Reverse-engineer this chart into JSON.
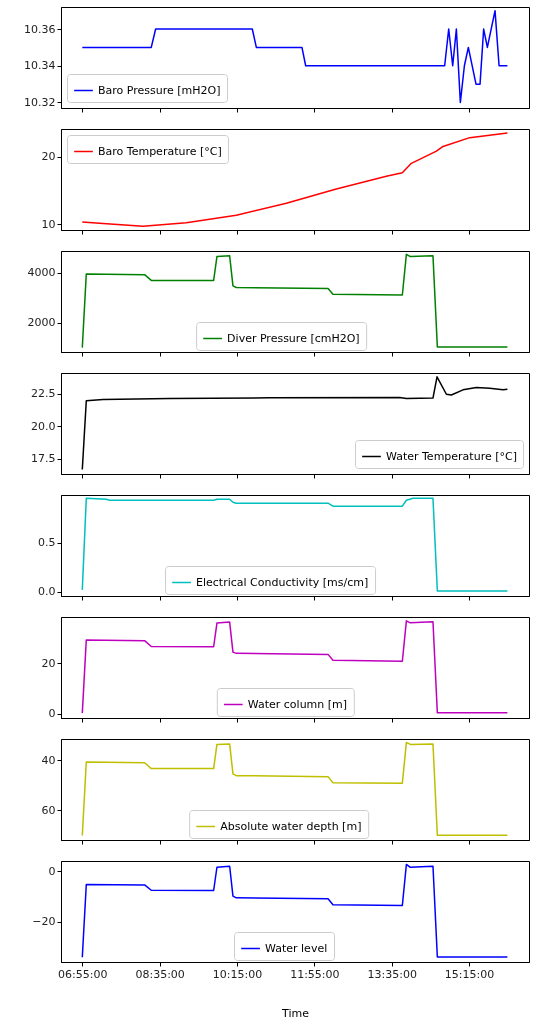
{
  "chart_data": [
    {
      "type": "line",
      "x": [
        6.917,
        8.403,
        8.497,
        10.58,
        10.667,
        11.65,
        11.73,
        14.725,
        14.812,
        14.898,
        14.977,
        15.063,
        15.15,
        15.235,
        15.4,
        15.487,
        15.565,
        15.645,
        15.81,
        15.897,
        16.077
      ],
      "series": [
        {
          "name": "Baro Pressure [mH2O]",
          "color": "#0000ff",
          "values": [
            10.35,
            10.35,
            10.36,
            10.36,
            10.35,
            10.35,
            10.34,
            10.34,
            10.36,
            10.34,
            10.36,
            10.32,
            10.34,
            10.35,
            10.33,
            10.33,
            10.36,
            10.35,
            10.37,
            10.34,
            10.34
          ]
        }
      ],
      "xlim": [
        6.458,
        16.542
      ],
      "xticks": [
        {
          "value": 6.9167,
          "label": null
        },
        {
          "value": 8.5833,
          "label": null
        },
        {
          "value": 10.25,
          "label": null
        },
        {
          "value": 11.9167,
          "label": null
        },
        {
          "value": 13.5833,
          "label": null
        },
        {
          "value": 15.25,
          "label": null
        }
      ],
      "ylim": [
        10.317,
        10.372
      ],
      "yticks": [
        10.32,
        10.34,
        10.36
      ],
      "legend": "bottom left",
      "tick_labels": "y"
    },
    {
      "type": "line",
      "x": [
        6.917,
        7.362,
        8.224,
        9.158,
        10.235,
        11.313,
        12.39,
        13.468,
        13.813,
        14.007,
        14.547,
        14.69,
        15.265,
        16.077
      ],
      "series": [
        {
          "name": "Baro Temperature [°C]",
          "color": "#ff0000",
          "values": [
            10.3,
            10.1,
            9.7,
            10.2,
            11.3,
            13.1,
            15.2,
            17.1,
            17.6,
            19.0,
            20.8,
            21.5,
            22.8,
            23.5
          ]
        }
      ],
      "xlim": [
        6.458,
        16.542
      ],
      "xticks": [
        {
          "value": 6.9167,
          "label": null
        },
        {
          "value": 8.5833,
          "label": null
        },
        {
          "value": 10.25,
          "label": null
        },
        {
          "value": 11.9167,
          "label": null
        },
        {
          "value": 13.5833,
          "label": null
        },
        {
          "value": 15.25,
          "label": null
        }
      ],
      "ylim": [
        9.13,
        24.08
      ],
      "yticks": [
        10,
        20
      ],
      "legend": "top left",
      "tick_labels": "y"
    },
    {
      "type": "line",
      "x": [
        6.917,
        7.003,
        8.26,
        8.403,
        9.747,
        9.818,
        10.092,
        10.163,
        10.235,
        12.212,
        12.318,
        13.813,
        13.9,
        13.985,
        14.473,
        14.567,
        16.077
      ],
      "series": [
        {
          "name": "Diver Pressure [cmH2O]",
          "color": "#008000",
          "values": [
            1010,
            3950,
            3920,
            3690,
            3690,
            4640,
            4670,
            3470,
            3410,
            3370,
            3140,
            3110,
            4730,
            4640,
            4670,
            1040,
            1040
          ]
        }
      ],
      "xlim": [
        6.458,
        16.542
      ],
      "xticks": [
        {
          "value": 6.9167,
          "label": null
        },
        {
          "value": 8.5833,
          "label": null
        },
        {
          "value": 10.25,
          "label": null
        },
        {
          "value": 11.9167,
          "label": null
        },
        {
          "value": 13.5833,
          "label": null
        },
        {
          "value": 15.25,
          "label": null
        }
      ],
      "ylim": [
        836,
        4863
      ],
      "yticks": [
        2000,
        4000
      ],
      "legend": "bottom",
      "tick_labels": "y"
    },
    {
      "type": "line",
      "x": [
        6.917,
        7.003,
        7.362,
        8.798,
        10.953,
        13.755,
        13.9,
        14.473,
        14.56,
        14.762,
        14.87,
        15.12,
        15.408,
        15.695,
        15.983,
        16.077
      ],
      "series": [
        {
          "name": "Water Temperature [°C]",
          "color": "#000000",
          "values": [
            16.68,
            21.95,
            22.05,
            22.13,
            22.18,
            22.21,
            22.13,
            22.16,
            23.79,
            22.45,
            22.39,
            22.79,
            22.97,
            22.92,
            22.79,
            22.84
          ]
        }
      ],
      "xlim": [
        6.458,
        16.542
      ],
      "xticks": [
        {
          "value": 6.9167,
          "label": null
        },
        {
          "value": 8.5833,
          "label": null
        },
        {
          "value": 10.25,
          "label": null
        },
        {
          "value": 11.9167,
          "label": null
        },
        {
          "value": 13.5833,
          "label": null
        },
        {
          "value": 15.25,
          "label": null
        }
      ],
      "ylim": [
        16.34,
        24.08
      ],
      "yticks": [
        17.5,
        {
          "value": 20,
          "label": "20.0"
        },
        22.5
      ],
      "legend": "bottom right",
      "tick_labels": "y"
    },
    {
      "type": "line",
      "x": [
        6.917,
        7.003,
        7.433,
        7.505,
        9.747,
        9.818,
        10.092,
        10.163,
        10.235,
        12.212,
        12.318,
        13.813,
        13.9,
        14.043,
        14.473,
        14.567,
        16.077
      ],
      "series": [
        {
          "name": "Electrical Conductivity [ms/cm]",
          "color": "#00bfbf",
          "values": [
            0.02,
            0.95,
            0.94,
            0.93,
            0.93,
            0.94,
            0.94,
            0.91,
            0.9,
            0.9,
            0.87,
            0.87,
            0.93,
            0.95,
            0.95,
            0.01,
            0.01
          ]
        }
      ],
      "xlim": [
        6.458,
        16.542
      ],
      "xticks": [
        {
          "value": 6.9167,
          "label": null
        },
        {
          "value": 8.5833,
          "label": null
        },
        {
          "value": 10.25,
          "label": null
        },
        {
          "value": 11.9167,
          "label": null
        },
        {
          "value": 13.5833,
          "label": null
        },
        {
          "value": 15.25,
          "label": null
        }
      ],
      "ylim": [
        -0.042,
        0.983
      ],
      "yticks": [
        {
          "value": 0,
          "label": "0.0"
        },
        0.5
      ],
      "legend": "bottom",
      "tick_labels": "y"
    },
    {
      "type": "line",
      "x": [
        6.917,
        7.003,
        8.26,
        8.403,
        9.747,
        9.818,
        10.092,
        10.163,
        10.235,
        12.212,
        12.318,
        13.813,
        13.9,
        13.985,
        14.473,
        14.567,
        16.077
      ],
      "series": [
        {
          "name": "Water column [m]",
          "color": "#bf00bf",
          "values": [
            0.3,
            29.1,
            28.8,
            26.5,
            26.4,
            35.7,
            36.1,
            24.3,
            23.8,
            23.4,
            21.1,
            20.7,
            36.6,
            35.8,
            36.2,
            0.4,
            0.4
          ]
        }
      ],
      "xlim": [
        6.458,
        16.542
      ],
      "xticks": [
        {
          "value": 6.9167,
          "label": null
        },
        {
          "value": 8.5833,
          "label": null
        },
        {
          "value": 10.25,
          "label": null
        },
        {
          "value": 11.9167,
          "label": null
        },
        {
          "value": 13.5833,
          "label": null
        },
        {
          "value": 15.25,
          "label": null
        }
      ],
      "ylim": [
        -1.62,
        38.1
      ],
      "yticks": [
        0,
        20
      ],
      "legend": "bottom",
      "tick_labels": "y"
    },
    {
      "type": "line",
      "x": [
        6.917,
        7.003,
        8.26,
        8.403,
        9.747,
        9.818,
        10.092,
        10.163,
        10.235,
        12.212,
        12.318,
        13.813,
        13.9,
        13.985,
        14.473,
        14.567,
        16.077
      ],
      "series": [
        {
          "name": "Absolute water depth [m]",
          "color": "#bfbf00",
          "values": [
            70.0,
            40.8,
            41.1,
            43.4,
            43.4,
            33.8,
            33.6,
            45.5,
            46.2,
            46.6,
            49.0,
            49.2,
            33.0,
            33.8,
            33.6,
            69.9,
            69.9
          ]
        }
      ],
      "xlim": [
        6.458,
        16.542
      ],
      "xticks": [
        {
          "value": 6.9167,
          "label": null
        },
        {
          "value": 8.5833,
          "label": null
        },
        {
          "value": 10.25,
          "label": null
        },
        {
          "value": 11.9167,
          "label": null
        },
        {
          "value": 13.5833,
          "label": null
        },
        {
          "value": 15.25,
          "label": null
        }
      ],
      "ylim": [
        71.78,
        31.64
      ],
      "yticks": [
        40,
        60
      ],
      "legend": "bottom",
      "tick_labels": "y"
    },
    {
      "type": "line",
      "x": [
        6.917,
        7.003,
        8.26,
        8.403,
        9.747,
        9.818,
        10.092,
        10.163,
        10.235,
        12.212,
        12.318,
        13.813,
        13.9,
        13.985,
        14.473,
        14.567,
        16.077
      ],
      "series": [
        {
          "name": "Water level",
          "color": "#0000ff",
          "values": [
            -34.0,
            -5.2,
            -5.4,
            -7.5,
            -7.6,
            1.6,
            2.0,
            -9.8,
            -10.5,
            -10.9,
            -13.2,
            -13.5,
            2.7,
            1.6,
            2.0,
            -33.9,
            -33.9
          ]
        }
      ],
      "xlim": [
        6.458,
        16.542
      ],
      "xticks": [
        {
          "value": 6.9167,
          "label": "06:55:00"
        },
        {
          "value": 8.5833,
          "label": "08:35:00"
        },
        {
          "value": 10.25,
          "label": "10:15:00"
        },
        {
          "value": 11.9167,
          "label": "11:55:00"
        },
        {
          "value": 13.5833,
          "label": "13:35:00"
        },
        {
          "value": 15.25,
          "label": "15:15:00"
        }
      ],
      "ylim": [
        -35.9,
        4.08
      ],
      "yticks": [
        {
          "value": -20,
          "label": "−20"
        },
        0
      ],
      "legend": "bottom",
      "xlabel": "Time"
    }
  ]
}
